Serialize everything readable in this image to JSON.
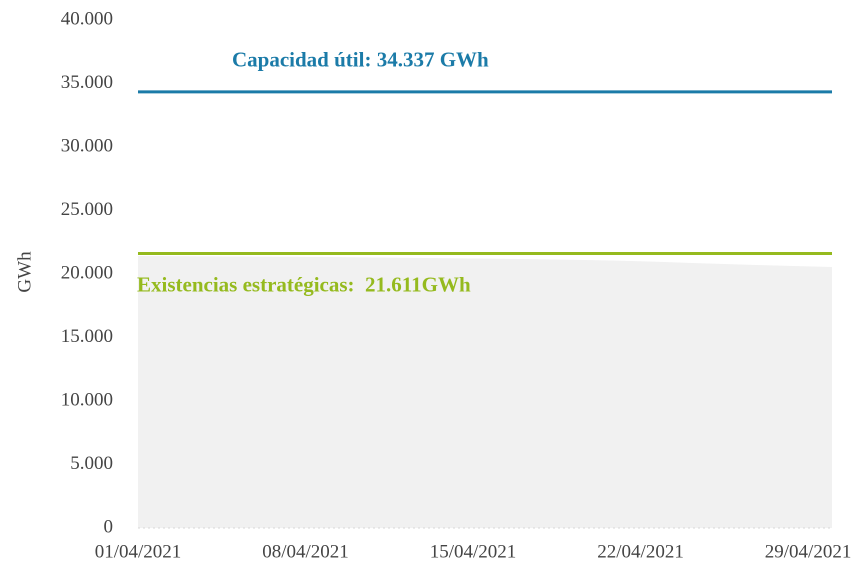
{
  "chart_data": {
    "type": "area",
    "y_label": "GWh",
    "x": [
      "01/04/2021",
      "02/04/2021",
      "03/04/2021",
      "04/04/2021",
      "05/04/2021",
      "06/04/2021",
      "07/04/2021",
      "08/04/2021",
      "09/04/2021",
      "10/04/2021",
      "11/04/2021",
      "12/04/2021",
      "13/04/2021",
      "14/04/2021",
      "15/04/2021",
      "16/04/2021",
      "17/04/2021",
      "18/04/2021",
      "19/04/2021",
      "20/04/2021",
      "21/04/2021",
      "22/04/2021",
      "23/04/2021",
      "24/04/2021",
      "25/04/2021",
      "26/04/2021",
      "27/04/2021",
      "28/04/2021",
      "29/04/2021",
      "30/04/2021"
    ],
    "series": [
      {
        "color": "#f1f1f1",
        "values": [
          21420,
          21410,
          21400,
          21390,
          21380,
          21370,
          21360,
          21350,
          21340,
          21320,
          21300,
          21280,
          21260,
          21240,
          21220,
          21200,
          21180,
          21150,
          21120,
          21090,
          21050,
          21000,
          20940,
          20880,
          20820,
          20760,
          20700,
          20650,
          20600,
          20550
        ]
      }
    ],
    "xticks": [
      "01/04/2021",
      "08/04/2021",
      "15/04/2021",
      "22/04/2021",
      "29/04/2021"
    ],
    "ylim": [
      0,
      40000
    ],
    "yticks": [
      0,
      {
        "value": 5000,
        "label": "5.000"
      },
      {
        "value": 10000,
        "label": "10.000"
      },
      {
        "value": 15000,
        "label": "15.000"
      },
      {
        "value": 20000,
        "label": "20.000"
      },
      {
        "value": 25000,
        "label": "25.000"
      },
      {
        "value": 30000,
        "label": "30.000"
      },
      {
        "value": 35000,
        "label": "35.000"
      },
      {
        "value": 40000,
        "label": "40.000"
      }
    ],
    "reference_lines": [
      {
        "value": 34337,
        "label": "Capacidad útil: 34.337 GWh",
        "color": "#1b7ba8"
      },
      {
        "value": 21611,
        "label": "Existencias estratégicas:  21.611GWh",
        "color": "#95ba1e"
      }
    ]
  }
}
